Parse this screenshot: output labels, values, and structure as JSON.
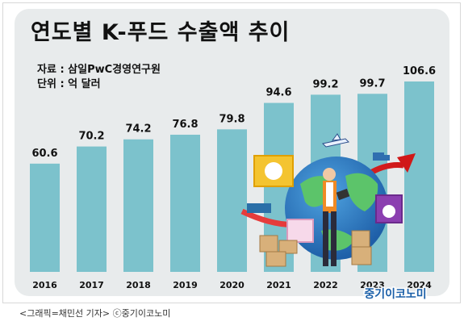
{
  "caption": "<그래픽=채민선 기자>   ⓒ중기이코노미",
  "brand": "중기이코노미",
  "colors": {
    "panel": "#e8ebec",
    "bar": "#7cc2cc",
    "text": "#111111",
    "brand": "#1a5fa8"
  },
  "chart_data": {
    "type": "bar",
    "title": "연도별 K-푸드 수출액 추이",
    "source": "자료 : 삼일PwC경영연구원",
    "unit": "단위 : 억 달러",
    "categories": [
      "2016",
      "2017",
      "2018",
      "2019",
      "2020",
      "2021",
      "2022",
      "2023",
      "2024"
    ],
    "values": [
      60.6,
      70.2,
      74.2,
      76.8,
      79.8,
      94.6,
      99.2,
      99.7,
      106.6
    ],
    "value_labels": [
      "60.6",
      "70.2",
      "74.2",
      "76.8",
      "79.8",
      "94.6",
      "99.2",
      "99.7",
      "106.6"
    ],
    "ylim": [
      0,
      106.6
    ],
    "grid": false,
    "legend": "none"
  }
}
